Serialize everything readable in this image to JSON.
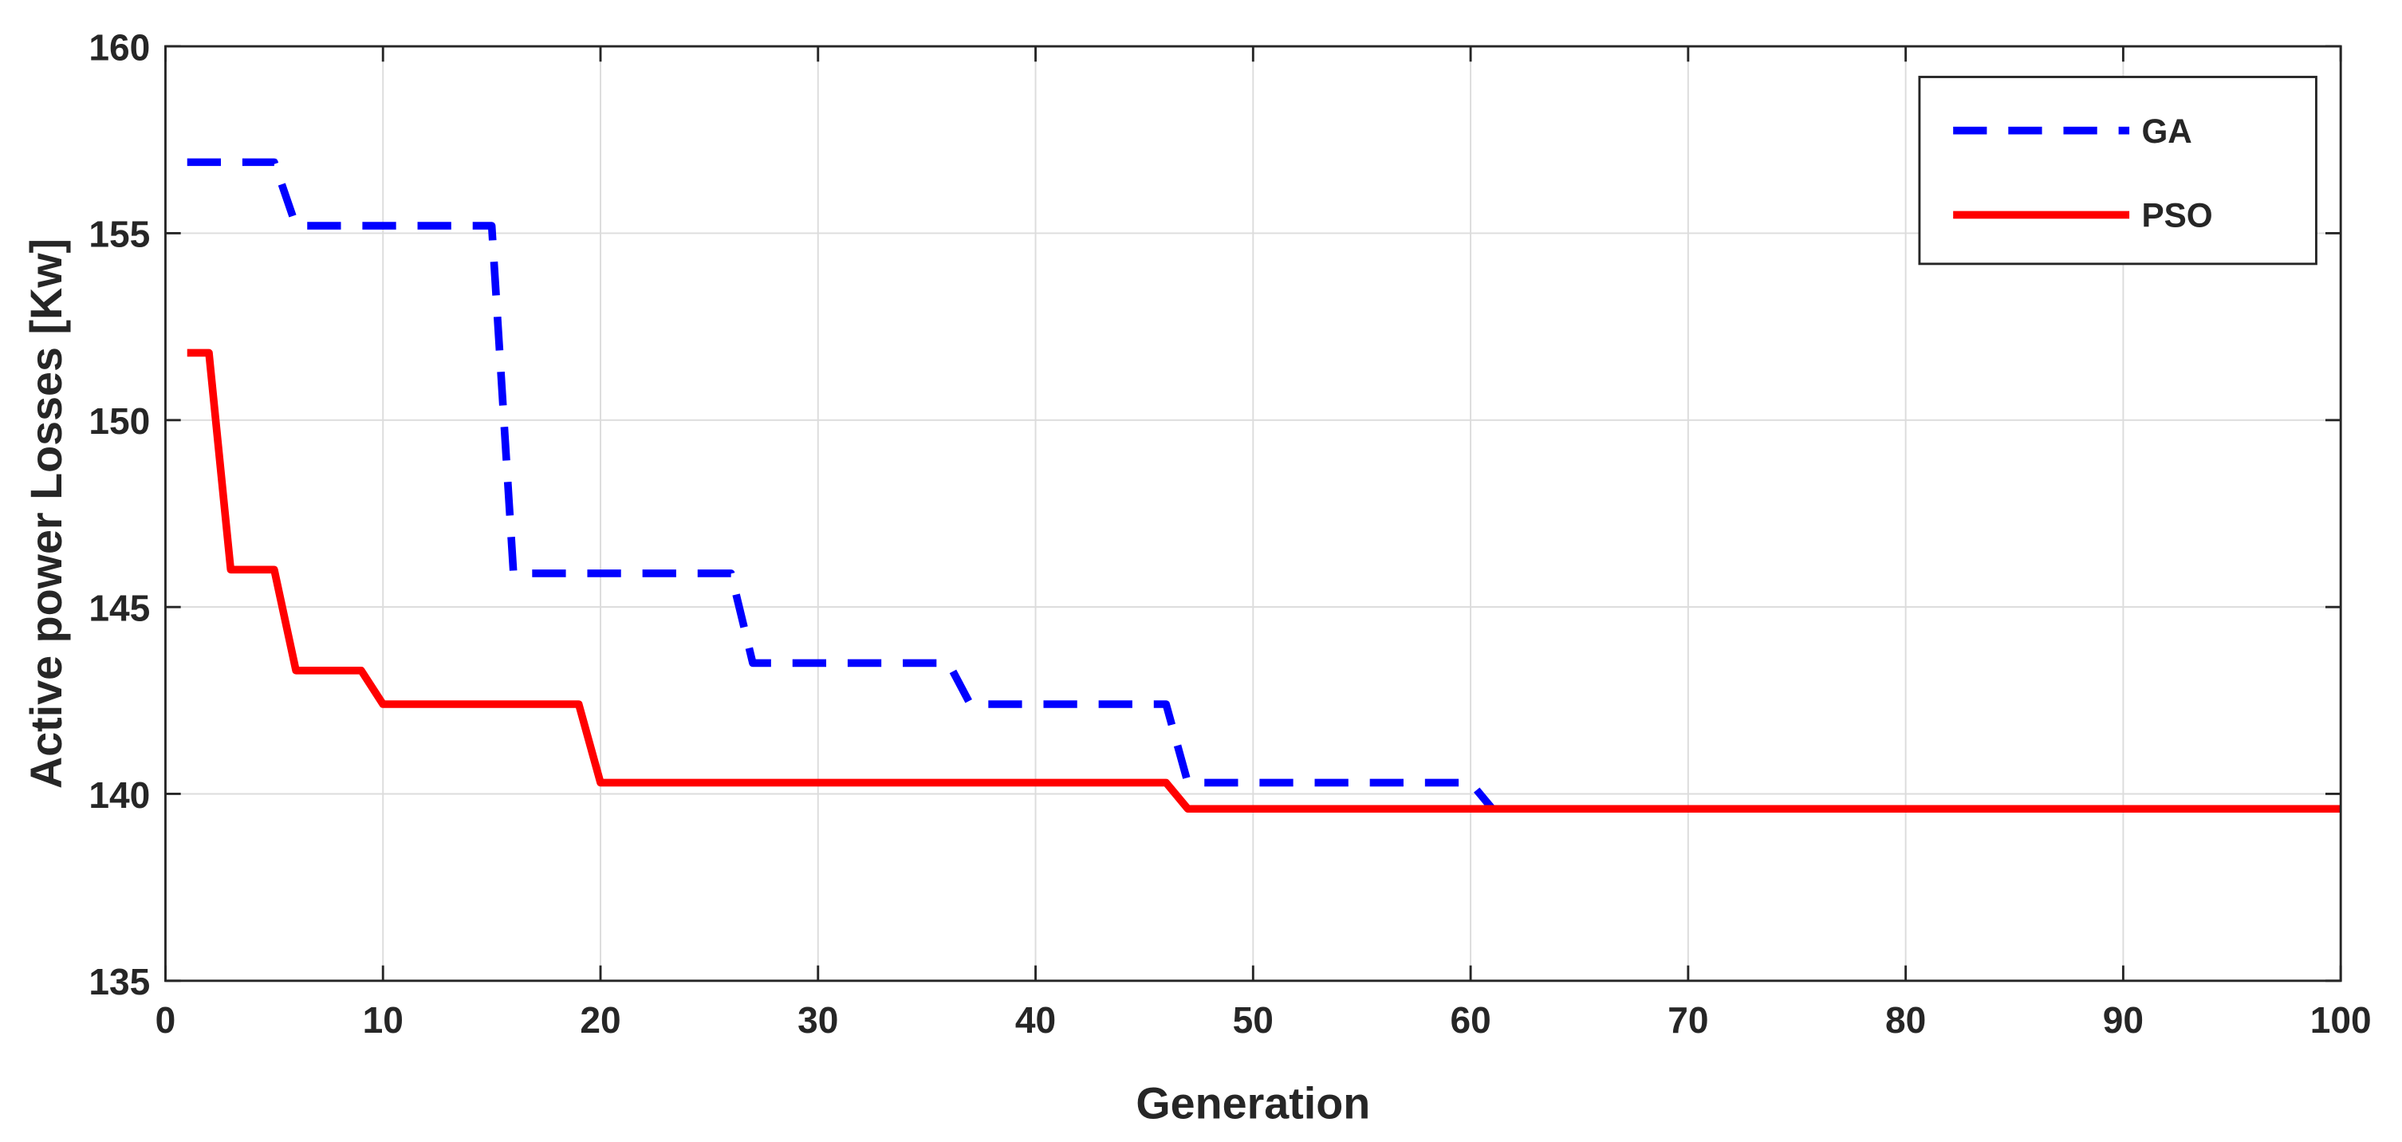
{
  "chart_data": {
    "type": "line",
    "xlabel": "Generation",
    "ylabel": "Active power Losses [Kw]",
    "x": [
      1,
      2,
      3,
      4,
      5,
      6,
      7,
      8,
      9,
      10,
      11,
      12,
      13,
      14,
      15,
      16,
      17,
      18,
      19,
      20,
      21,
      22,
      23,
      24,
      25,
      26,
      27,
      28,
      29,
      30,
      31,
      32,
      33,
      34,
      35,
      36,
      37,
      38,
      39,
      40,
      41,
      42,
      43,
      44,
      45,
      46,
      47,
      48,
      49,
      50,
      51,
      52,
      53,
      54,
      55,
      56,
      57,
      58,
      59,
      60,
      61,
      62,
      63,
      64,
      65,
      66,
      67,
      68,
      69,
      70,
      71,
      72,
      73,
      74,
      75,
      76,
      77,
      78,
      79,
      80,
      81,
      82,
      83,
      84,
      85,
      86,
      87,
      88,
      89,
      90,
      91,
      92,
      93,
      94,
      95,
      96,
      97,
      98,
      99,
      100
    ],
    "series": [
      {
        "name": "GA",
        "color": "#0000ff",
        "linestyle": "dashed",
        "values": [
          156.9,
          156.9,
          156.9,
          156.9,
          156.9,
          155.2,
          155.2,
          155.2,
          155.2,
          155.2,
          155.2,
          155.2,
          155.2,
          155.2,
          155.2,
          145.9,
          145.9,
          145.9,
          145.9,
          145.9,
          145.9,
          145.9,
          145.9,
          145.9,
          145.9,
          145.9,
          143.5,
          143.5,
          143.5,
          143.5,
          143.5,
          143.5,
          143.5,
          143.5,
          143.5,
          143.5,
          142.4,
          142.4,
          142.4,
          142.4,
          142.4,
          142.4,
          142.4,
          142.4,
          142.4,
          142.4,
          140.3,
          140.3,
          140.3,
          140.3,
          140.3,
          140.3,
          140.3,
          140.3,
          140.3,
          140.3,
          140.3,
          140.3,
          140.3,
          140.3,
          139.6,
          139.6,
          139.6,
          139.6,
          139.6,
          139.6,
          139.6,
          139.6,
          139.6,
          139.6,
          139.6,
          139.6,
          139.6,
          139.6,
          139.6,
          139.6,
          139.6,
          139.6,
          139.6,
          139.6,
          139.6,
          139.6,
          139.6,
          139.6,
          139.6,
          139.6,
          139.6,
          139.6,
          139.6,
          139.6,
          139.6,
          139.6,
          139.6,
          139.6,
          139.6,
          139.6,
          139.6,
          139.6,
          139.6,
          139.6
        ]
      },
      {
        "name": "PSO",
        "color": "#ff0000",
        "linestyle": "solid",
        "values": [
          151.8,
          151.8,
          146,
          146,
          146,
          143.3,
          143.3,
          143.3,
          143.3,
          142.4,
          142.4,
          142.4,
          142.4,
          142.4,
          142.4,
          142.4,
          142.4,
          142.4,
          142.4,
          140.3,
          140.3,
          140.3,
          140.3,
          140.3,
          140.3,
          140.3,
          140.3,
          140.3,
          140.3,
          140.3,
          140.3,
          140.3,
          140.3,
          140.3,
          140.3,
          140.3,
          140.3,
          140.3,
          140.3,
          140.3,
          140.3,
          140.3,
          140.3,
          140.3,
          140.3,
          140.3,
          139.6,
          139.6,
          139.6,
          139.6,
          139.6,
          139.6,
          139.6,
          139.6,
          139.6,
          139.6,
          139.6,
          139.6,
          139.6,
          139.6,
          139.6,
          139.6,
          139.6,
          139.6,
          139.6,
          139.6,
          139.6,
          139.6,
          139.6,
          139.6,
          139.6,
          139.6,
          139.6,
          139.6,
          139.6,
          139.6,
          139.6,
          139.6,
          139.6,
          139.6,
          139.6,
          139.6,
          139.6,
          139.6,
          139.6,
          139.6,
          139.6,
          139.6,
          139.6,
          139.6,
          139.6,
          139.6,
          139.6,
          139.6,
          139.6,
          139.6,
          139.6,
          139.6,
          139.6,
          139.6
        ]
      }
    ],
    "xlim": [
      0,
      100
    ],
    "xticks": [
      0,
      10,
      20,
      30,
      40,
      50,
      60,
      70,
      80,
      90,
      100
    ],
    "ylim": [
      135,
      160
    ],
    "yticks": [
      135,
      140,
      145,
      150,
      155,
      160
    ],
    "grid": true,
    "legend": "top-right"
  }
}
